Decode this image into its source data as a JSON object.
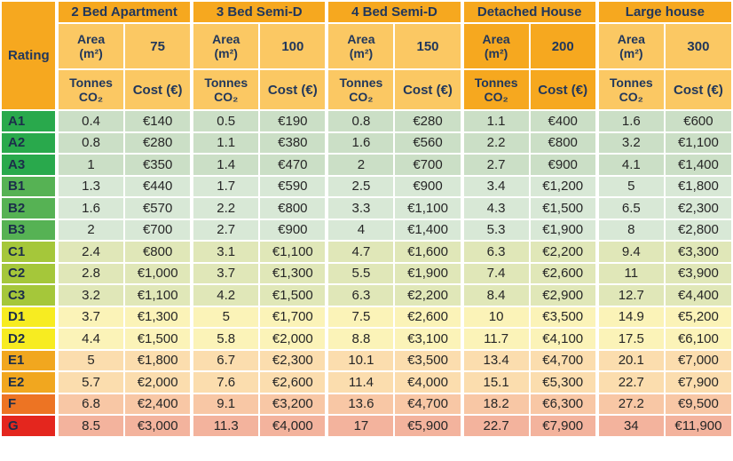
{
  "colors": {
    "header_dark": "#F6A81F",
    "header_light": "#FBC863",
    "header_text": "#21375B",
    "rating_text": "#1C2E4A",
    "data_text": "#262626",
    "grid": "#FFFFFF",
    "bands": {
      "A": {
        "label_bg": "#29A94C",
        "row_bg": "#CBDFC6"
      },
      "B": {
        "label_bg": "#56B254",
        "row_bg": "#D8E8D6"
      },
      "C": {
        "label_bg": "#A5C73A",
        "row_bg": "#E0E7B8"
      },
      "D": {
        "label_bg": "#F7EC21",
        "row_bg": "#FBF3B8"
      },
      "E": {
        "label_bg": "#F1A71F",
        "row_bg": "#FBDDAE"
      },
      "F": {
        "label_bg": "#ED7423",
        "row_bg": "#F8C7A5"
      },
      "G": {
        "label_bg": "#E4261E",
        "row_bg": "#F3B39D"
      }
    }
  },
  "chart_data": {
    "type": "table",
    "rating_label": "Rating",
    "groups": [
      {
        "name": "2 Bed Apartment",
        "area_label": "Area\n(m²)",
        "area_value": "75",
        "tonnes_label": "Tonnes\nCO₂",
        "cost_label": "Cost (€)",
        "highlight": false
      },
      {
        "name": "3 Bed Semi-D",
        "area_label": "Area\n(m²)",
        "area_value": "100",
        "tonnes_label": "Tonnes\nCO₂",
        "cost_label": "Cost (€)",
        "highlight": false
      },
      {
        "name": "4 Bed Semi-D",
        "area_label": "Area\n(m²)",
        "area_value": "150",
        "tonnes_label": "Tonnes\nCO₂",
        "cost_label": "Cost (€)",
        "highlight": false
      },
      {
        "name": "Detached House",
        "area_label": "Area\n(m²)",
        "area_value": "200",
        "tonnes_label": "Tonnes\nCO₂",
        "cost_label": "Cost (€)",
        "highlight": true
      },
      {
        "name": "Large house",
        "area_label": "Area\n(m²)",
        "area_value": "300",
        "tonnes_label": "Tonnes\nCO₂",
        "cost_label": "Cost (€)",
        "highlight": false
      }
    ],
    "rows": [
      {
        "rating": "A1",
        "band": "A",
        "values": [
          "0.4",
          "€140",
          "0.5",
          "€190",
          "0.8",
          "€280",
          "1.1",
          "€400",
          "1.6",
          "€600"
        ]
      },
      {
        "rating": "A2",
        "band": "A",
        "values": [
          "0.8",
          "€280",
          "1.1",
          "€380",
          "1.6",
          "€560",
          "2.2",
          "€800",
          "3.2",
          "€1,100"
        ]
      },
      {
        "rating": "A3",
        "band": "A",
        "values": [
          "1",
          "€350",
          "1.4",
          "€470",
          "2",
          "€700",
          "2.7",
          "€900",
          "4.1",
          "€1,400"
        ]
      },
      {
        "rating": "B1",
        "band": "B",
        "values": [
          "1.3",
          "€440",
          "1.7",
          "€590",
          "2.5",
          "€900",
          "3.4",
          "€1,200",
          "5",
          "€1,800"
        ]
      },
      {
        "rating": "B2",
        "band": "B",
        "values": [
          "1.6",
          "€570",
          "2.2",
          "€800",
          "3.3",
          "€1,100",
          "4.3",
          "€1,500",
          "6.5",
          "€2,300"
        ]
      },
      {
        "rating": "B3",
        "band": "B",
        "values": [
          "2",
          "€700",
          "2.7",
          "€900",
          "4",
          "€1,400",
          "5.3",
          "€1,900",
          "8",
          "€2,800"
        ]
      },
      {
        "rating": "C1",
        "band": "C",
        "values": [
          "2.4",
          "€800",
          "3.1",
          "€1,100",
          "4.7",
          "€1,600",
          "6.3",
          "€2,200",
          "9.4",
          "€3,300"
        ]
      },
      {
        "rating": "C2",
        "band": "C",
        "values": [
          "2.8",
          "€1,000",
          "3.7",
          "€1,300",
          "5.5",
          "€1,900",
          "7.4",
          "€2,600",
          "11",
          "€3,900"
        ]
      },
      {
        "rating": "C3",
        "band": "C",
        "values": [
          "3.2",
          "€1,100",
          "4.2",
          "€1,500",
          "6.3",
          "€2,200",
          "8.4",
          "€2,900",
          "12.7",
          "€4,400"
        ]
      },
      {
        "rating": "D1",
        "band": "D",
        "values": [
          "3.7",
          "€1,300",
          "5",
          "€1,700",
          "7.5",
          "€2,600",
          "10",
          "€3,500",
          "14.9",
          "€5,200"
        ]
      },
      {
        "rating": "D2",
        "band": "D",
        "values": [
          "4.4",
          "€1,500",
          "5.8",
          "€2,000",
          "8.8",
          "€3,100",
          "11.7",
          "€4,100",
          "17.5",
          "€6,100"
        ]
      },
      {
        "rating": "E1",
        "band": "E",
        "values": [
          "5",
          "€1,800",
          "6.7",
          "€2,300",
          "10.1",
          "€3,500",
          "13.4",
          "€4,700",
          "20.1",
          "€7,000"
        ]
      },
      {
        "rating": "E2",
        "band": "E",
        "values": [
          "5.7",
          "€2,000",
          "7.6",
          "€2,600",
          "11.4",
          "€4,000",
          "15.1",
          "€5,300",
          "22.7",
          "€7,900"
        ]
      },
      {
        "rating": "F",
        "band": "F",
        "values": [
          "6.8",
          "€2,400",
          "9.1",
          "€3,200",
          "13.6",
          "€4,700",
          "18.2",
          "€6,300",
          "27.2",
          "€9,500"
        ]
      },
      {
        "rating": "G",
        "band": "G",
        "values": [
          "8.5",
          "€3,000",
          "11.3",
          "€4,000",
          "17",
          "€5,900",
          "22.7",
          "€7,900",
          "34",
          "€11,900"
        ]
      }
    ]
  }
}
